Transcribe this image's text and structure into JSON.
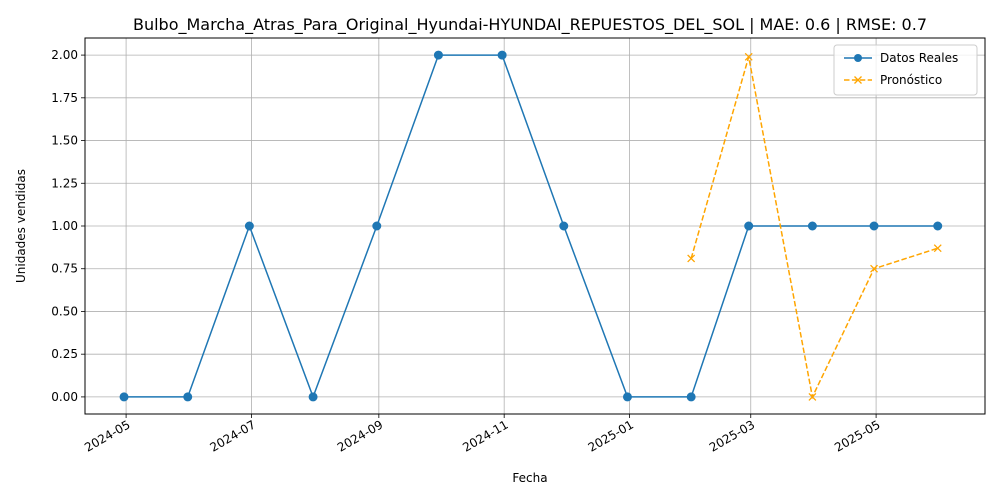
{
  "chart_data": {
    "type": "line",
    "title": "Bulbo_Marcha_Atras_Para_Original_Hyundai-HYUNDAI_REPUESTOS_DEL_SOL | MAE: 0.6 | RMSE: 0.7",
    "xlabel": "Fecha",
    "ylabel": "Unidades vendidas",
    "x_ticks": [
      "2024-05",
      "2024-07",
      "2024-09",
      "2024-11",
      "2025-01",
      "2025-03",
      "2025-05"
    ],
    "y_ticks": [
      "0.00",
      "0.25",
      "0.50",
      "0.75",
      "1.00",
      "1.25",
      "1.50",
      "1.75",
      "2.00"
    ],
    "xlim": [
      "2024-04-11",
      "2025-06-23"
    ],
    "ylim": [
      -0.1,
      2.1
    ],
    "grid": true,
    "legend_position": "top-right",
    "series": [
      {
        "name": "Datos Reales",
        "color": "#1f77b4",
        "marker": "circle",
        "linestyle": "solid",
        "x": [
          "2024-04-30",
          "2024-05-31",
          "2024-06-30",
          "2024-07-31",
          "2024-08-31",
          "2024-09-30",
          "2024-10-31",
          "2024-11-30",
          "2024-12-31",
          "2025-01-31",
          "2025-02-28",
          "2025-03-31",
          "2025-04-30",
          "2025-05-31"
        ],
        "values": [
          0,
          0,
          1,
          0,
          1,
          2,
          2,
          1,
          0,
          0,
          1,
          1,
          1,
          1
        ]
      },
      {
        "name": "Pronóstico",
        "color": "#ffa500",
        "marker": "x",
        "linestyle": "dashed",
        "x": [
          "2025-01-31",
          "2025-02-28",
          "2025-03-31",
          "2025-04-30",
          "2025-05-31"
        ],
        "values": [
          0.81,
          1.99,
          0.0,
          0.75,
          0.87
        ]
      }
    ]
  }
}
